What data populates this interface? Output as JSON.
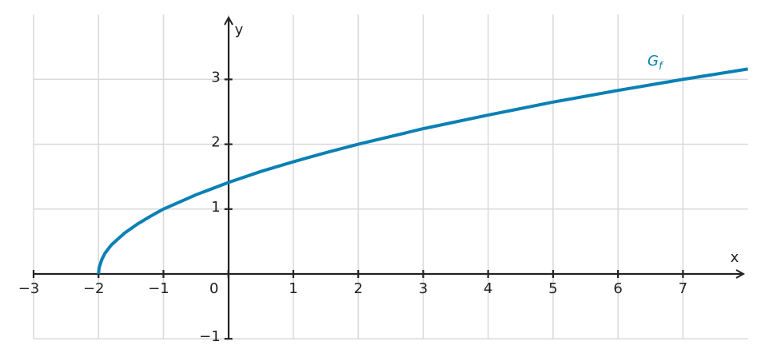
{
  "chart_data": {
    "type": "line",
    "x_label": "x",
    "y_label": "y",
    "x": [
      -2,
      -1.99,
      -1.95,
      -1.9,
      -1.8,
      -1.6,
      -1.4,
      -1.2,
      -1,
      -0.5,
      0,
      0.5,
      1,
      1.5,
      2,
      3,
      4,
      5,
      6,
      7,
      8
    ],
    "series": [
      {
        "name": "Gf",
        "color": "#0a80b4",
        "values": [
          0,
          0.1,
          0.22,
          0.32,
          0.45,
          0.63,
          0.77,
          0.89,
          1,
          1.22,
          1.41,
          1.58,
          1.73,
          1.87,
          2,
          2.24,
          2.45,
          2.65,
          2.83,
          3,
          3.16
        ]
      }
    ],
    "xlim": [
      -3,
      8
    ],
    "ylim": [
      -1,
      4
    ],
    "xticks": [
      {
        "value": -3,
        "label": "−3"
      },
      {
        "value": -2,
        "label": "−2"
      },
      {
        "value": -1,
        "label": "−1"
      },
      0,
      1,
      2,
      3,
      4,
      5,
      6,
      7
    ],
    "yticks": [
      {
        "value": -1,
        "label": "−1"
      },
      1,
      2,
      3
    ],
    "grid": true
  }
}
